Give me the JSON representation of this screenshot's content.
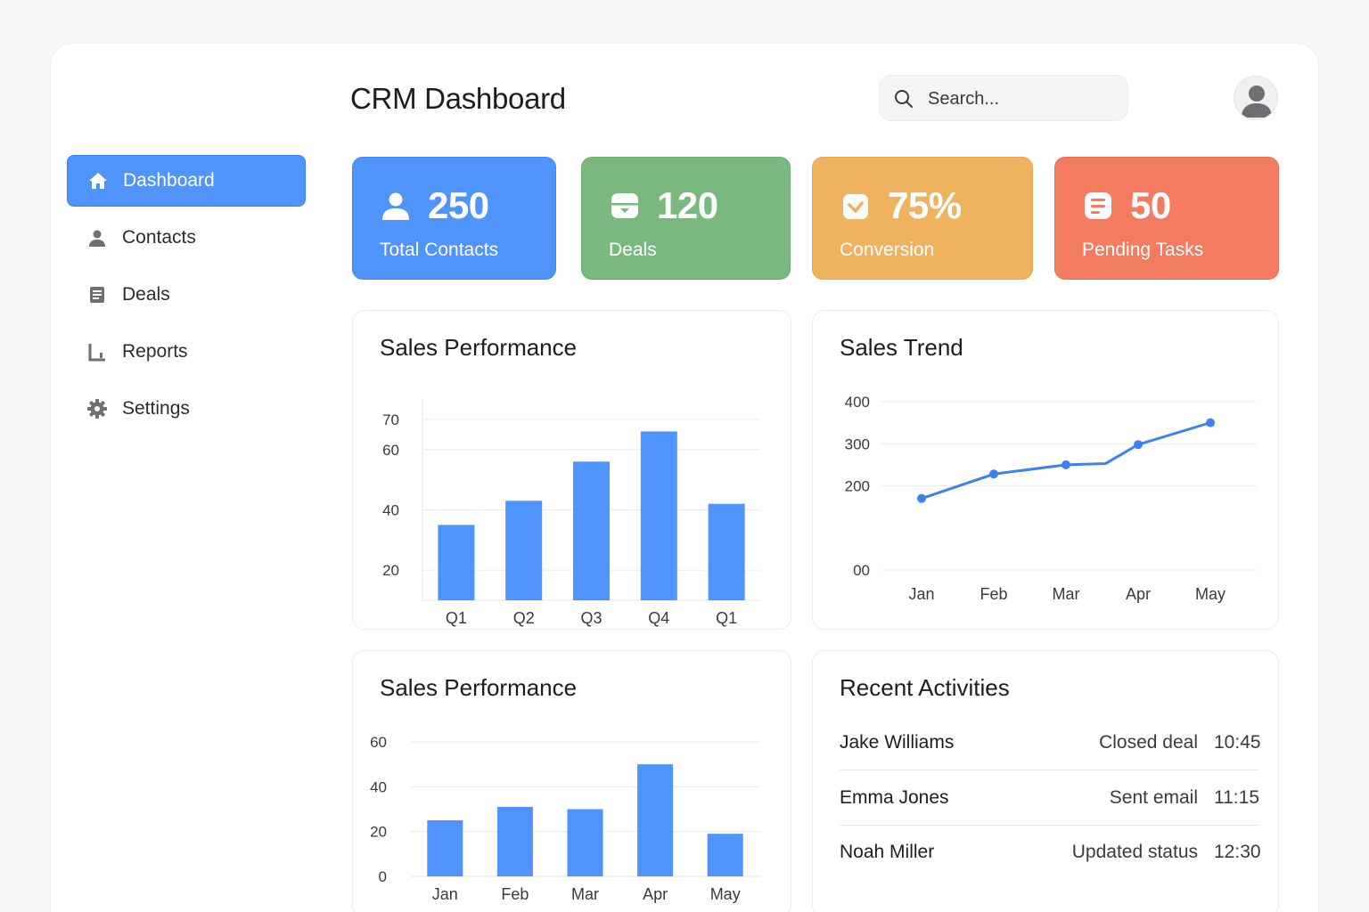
{
  "header": {
    "title": "CRM Dashboard",
    "search_placeholder": "Search..."
  },
  "sidebar": {
    "items": [
      {
        "label": "Dashboard",
        "icon": "home-icon",
        "active": true
      },
      {
        "label": "Contacts",
        "icon": "person-icon",
        "active": false
      },
      {
        "label": "Deals",
        "icon": "document-icon",
        "active": false
      },
      {
        "label": "Reports",
        "icon": "chart-icon",
        "active": false
      },
      {
        "label": "Settings",
        "icon": "gear-icon",
        "active": false
      }
    ]
  },
  "stats": [
    {
      "value": "250",
      "label": "Total Contacts",
      "icon": "person-icon",
      "color": "#4f93fc"
    },
    {
      "value": "120",
      "label": "Deals",
      "icon": "inbox-icon",
      "color": "#79b97f"
    },
    {
      "value": "75%",
      "label": "Conversion",
      "icon": "checkbox-icon",
      "color": "#efb35f"
    },
    {
      "value": "50",
      "label": "Pending Tasks",
      "icon": "list-icon",
      "color": "#f27b60"
    }
  ],
  "colors": {
    "accent": "#4f93fc",
    "bar": "#4f93fc",
    "line": "#3b82f0"
  },
  "chart_data": [
    {
      "type": "bar",
      "title": "Sales Performance",
      "categories": [
        "Q1",
        "Q2",
        "Q3",
        "Q4",
        "Q1"
      ],
      "values": [
        35,
        43,
        56,
        66,
        42
      ],
      "yticks": [
        20,
        40,
        60,
        70
      ],
      "ylim": [
        10,
        75
      ]
    },
    {
      "type": "line",
      "title": "Sales Trend",
      "categories": [
        "Jan",
        "Feb",
        "Mar",
        "Apr",
        "May"
      ],
      "points": [
        {
          "x": 0,
          "value": 170,
          "marker": true
        },
        {
          "x": 1,
          "value": 228,
          "marker": true
        },
        {
          "x": 2,
          "value": 250,
          "marker": true
        },
        {
          "x": 2.55,
          "value": 253,
          "marker": false
        },
        {
          "x": 3,
          "value": 298,
          "marker": true
        },
        {
          "x": 4,
          "value": 350,
          "marker": true
        }
      ],
      "yticks": [
        {
          "value": 0,
          "label": "00"
        },
        {
          "value": 200,
          "label": "200"
        },
        {
          "value": 300,
          "label": "300"
        },
        {
          "value": 400,
          "label": "400"
        }
      ],
      "ylim": [
        0,
        400
      ]
    },
    {
      "type": "bar",
      "title": "Sales Performance",
      "categories": [
        "Jan",
        "Feb",
        "Mar",
        "Apr",
        "May"
      ],
      "values": [
        25,
        31,
        30,
        50,
        19
      ],
      "yticks": [
        0,
        20,
        40,
        60
      ],
      "ylim": [
        0,
        60
      ]
    }
  ],
  "activities": {
    "title": "Recent Activities",
    "items": [
      {
        "name": "Jake Williams",
        "action": "Closed deal",
        "time": "10:45"
      },
      {
        "name": "Emma Jones",
        "action": "Sent email",
        "time": "11:15"
      },
      {
        "name": "Noah Miller",
        "action": "Updated status",
        "time": "12:30"
      }
    ]
  }
}
